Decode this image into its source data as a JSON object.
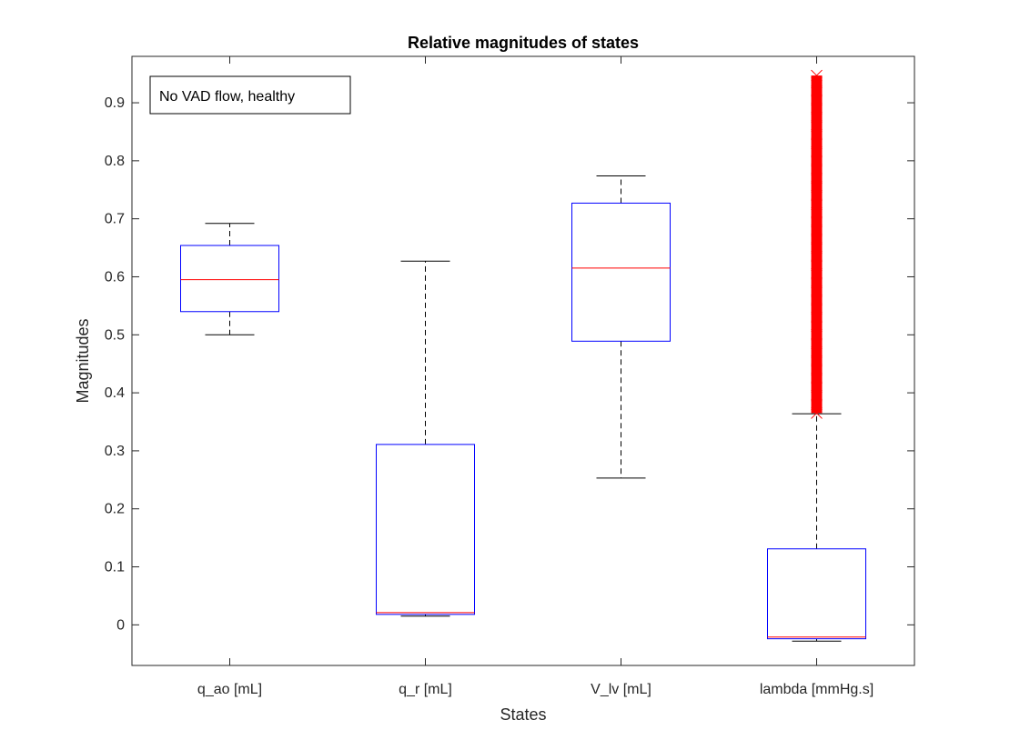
{
  "chart_data": {
    "type": "boxplot",
    "title": "Relative magnitudes of states",
    "xlabel": "States",
    "ylabel": "Magnitudes",
    "ylim": [
      -0.07,
      0.98
    ],
    "yticks": [
      0,
      0.1,
      0.2,
      0.3,
      0.4,
      0.5,
      0.6,
      0.7,
      0.8,
      0.9
    ],
    "ytick_labels": [
      "0",
      "0.1",
      "0.2",
      "0.3",
      "0.4",
      "0.5",
      "0.6",
      "0.7",
      "0.8",
      "0.9"
    ],
    "grid": false,
    "annotation": "No VAD flow, healthy",
    "categories": [
      "q_ao [mL]",
      "q_r [mL]",
      "V_lv [mL]",
      "lambda [mmHg.s]"
    ],
    "boxes": [
      {
        "whisker_low": 0.5,
        "q1": 0.54,
        "median": 0.595,
        "q3": 0.654,
        "whisker_high": 0.692,
        "outliers": []
      },
      {
        "whisker_low": 0.015,
        "q1": 0.018,
        "median": 0.021,
        "q3": 0.311,
        "whisker_high": 0.627,
        "outliers": []
      },
      {
        "whisker_low": 0.253,
        "q1": 0.489,
        "median": 0.615,
        "q3": 0.727,
        "whisker_high": 0.774,
        "outliers": []
      },
      {
        "whisker_low": -0.028,
        "q1": -0.024,
        "median": -0.021,
        "q3": 0.131,
        "whisker_high": 0.364,
        "outliers": [
          0.365,
          0.38,
          0.395,
          0.41,
          0.425,
          0.44,
          0.455,
          0.47,
          0.485,
          0.5,
          0.515,
          0.53,
          0.545,
          0.56,
          0.575,
          0.59,
          0.605,
          0.62,
          0.635,
          0.65,
          0.665,
          0.68,
          0.695,
          0.71,
          0.725,
          0.74,
          0.755,
          0.77,
          0.785,
          0.8,
          0.815,
          0.83,
          0.845,
          0.86,
          0.875,
          0.89,
          0.905,
          0.92,
          0.935,
          0.947
        ]
      }
    ],
    "colors": {
      "box": "#0000ff",
      "median": "#ff0000",
      "whisker": "#000000",
      "outlier": "#ff0000",
      "axis": "#262626"
    }
  }
}
